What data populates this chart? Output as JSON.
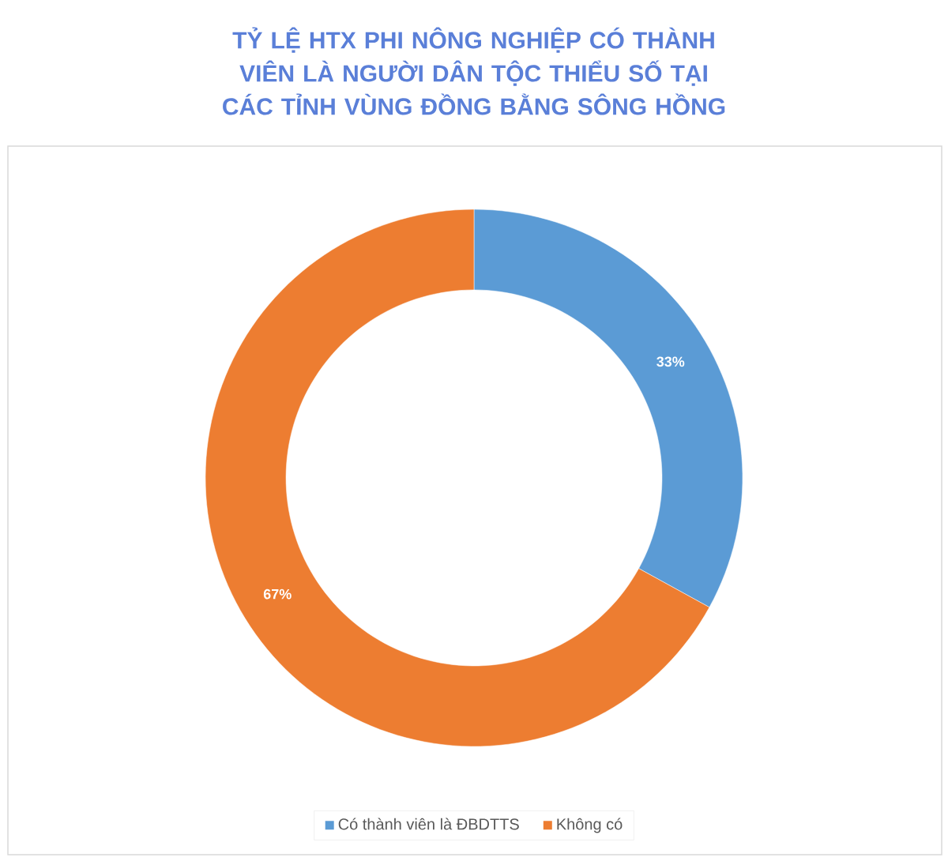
{
  "chart_data": {
    "type": "donut",
    "title": "TỶ LỆ HTX PHI NÔNG NGHIỆP CÓ THÀNH VIÊN LÀ NGƯỜI DÂN TỘC THIỂU SỐ TẠI CÁC TỈNH VÙNG ĐỒNG BẰNG SÔNG HỒNG",
    "categories": [
      "Có thành viên là ĐBDTTS",
      "Không có"
    ],
    "values": [
      33,
      67
    ],
    "colors": [
      "#5b9bd5",
      "#ed7d31"
    ],
    "value_labels": [
      "33%",
      "67%"
    ],
    "legend": "bottom"
  }
}
